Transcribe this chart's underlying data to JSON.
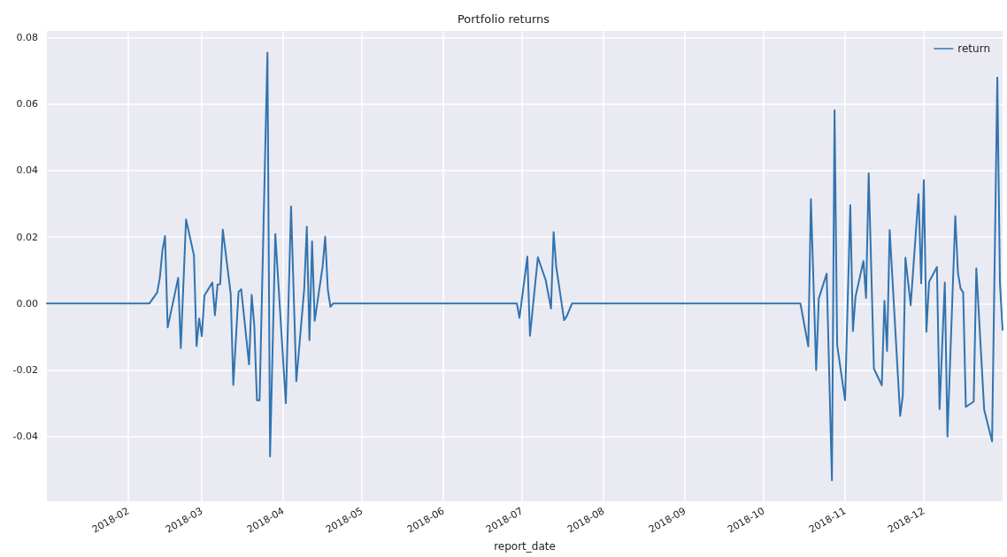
{
  "chart_data": {
    "type": "line",
    "title": "Portfolio returns",
    "xlabel": "report_date",
    "x": [
      "2018-01-01",
      "2018-02-09",
      "2018-02-12",
      "2018-02-13",
      "2018-02-14",
      "2018-02-15",
      "2018-02-16",
      "2018-02-20",
      "2018-02-21",
      "2018-02-23",
      "2018-02-26",
      "2018-02-27",
      "2018-02-28",
      "2018-03-01",
      "2018-03-02",
      "2018-03-05",
      "2018-03-06",
      "2018-03-07",
      "2018-03-08",
      "2018-03-09",
      "2018-03-12",
      "2018-03-13",
      "2018-03-15",
      "2018-03-16",
      "2018-03-19",
      "2018-03-20",
      "2018-03-21",
      "2018-03-22",
      "2018-03-23",
      "2018-03-26",
      "2018-03-27",
      "2018-03-29",
      "2018-04-02",
      "2018-04-04",
      "2018-04-06",
      "2018-04-09",
      "2018-04-10",
      "2018-04-11",
      "2018-04-12",
      "2018-04-13",
      "2018-04-16",
      "2018-04-17",
      "2018-04-18",
      "2018-04-19",
      "2018-04-20",
      "2018-06-29",
      "2018-06-30",
      "2018-07-03",
      "2018-07-04",
      "2018-07-07",
      "2018-07-10",
      "2018-07-12",
      "2018-07-13",
      "2018-07-14",
      "2018-07-17",
      "2018-07-18",
      "2018-07-20",
      "2018-10-15",
      "2018-10-18",
      "2018-10-19",
      "2018-10-21",
      "2018-10-22",
      "2018-10-25",
      "2018-10-27",
      "2018-10-28",
      "2018-10-29",
      "2018-11-01",
      "2018-11-03",
      "2018-11-04",
      "2018-11-05",
      "2018-11-08",
      "2018-11-09",
      "2018-11-10",
      "2018-11-12",
      "2018-11-15",
      "2018-11-16",
      "2018-11-17",
      "2018-11-18",
      "2018-11-22",
      "2018-11-23",
      "2018-11-24",
      "2018-11-26",
      "2018-11-29",
      "2018-11-30",
      "2018-12-01",
      "2018-12-02",
      "2018-12-03",
      "2018-12-06",
      "2018-12-07",
      "2018-12-09",
      "2018-12-10",
      "2018-12-13",
      "2018-12-14",
      "2018-12-15",
      "2018-12-16",
      "2018-12-17",
      "2018-12-20",
      "2018-12-21",
      "2018-12-24",
      "2018-12-27",
      "2018-12-29",
      "2018-12-30",
      "2018-12-31"
    ],
    "series": [
      {
        "name": "return",
        "color": "#3174b0",
        "values": [
          0,
          0,
          0.0033,
          0.0077,
          0.0159,
          0.0203,
          -0.0072,
          0.0077,
          -0.0134,
          0.0253,
          0.0145,
          -0.0128,
          -0.0045,
          -0.0098,
          0.0024,
          0.0063,
          -0.0035,
          0.0057,
          0.0058,
          0.0222,
          0.003,
          -0.0245,
          0.0035,
          0.0043,
          -0.0183,
          0.0026,
          -0.0067,
          -0.0291,
          -0.0291,
          0.0755,
          -0.046,
          0.0209,
          -0.03,
          0.0292,
          -0.0234,
          0.0043,
          0.0231,
          -0.011,
          0.0187,
          -0.0052,
          0.011,
          0.0201,
          0.0042,
          -0.001,
          0,
          0,
          -0.0043,
          0.0141,
          -0.0097,
          0.0139,
          0.007,
          -0.0015,
          0.0215,
          0.011,
          -0.005,
          -0.0038,
          0,
          0,
          -0.0129,
          0.0314,
          -0.02,
          0.0015,
          0.009,
          -0.0532,
          0.0581,
          -0.0125,
          -0.0291,
          0.0296,
          -0.0083,
          0.0021,
          0.0128,
          0.0017,
          0.0392,
          -0.0196,
          -0.0246,
          0.0008,
          -0.0143,
          0.0221,
          -0.0338,
          -0.0276,
          0.0138,
          -0.0005,
          0.0329,
          0.0061,
          0.0371,
          -0.0085,
          0.0065,
          0.011,
          -0.0318,
          0.0063,
          -0.04,
          0.0263,
          0.0092,
          0.0045,
          0.0033,
          -0.0311,
          -0.0295,
          0.0106,
          -0.032,
          -0.0415,
          0.068,
          0.0061,
          -0.0079
        ]
      }
    ],
    "xlim": [
      "2018-01-01",
      "2018-12-31"
    ],
    "xticks": [
      {
        "value": "2018-02-01",
        "label": "2018-02"
      },
      {
        "value": "2018-03-01",
        "label": "2018-03"
      },
      {
        "value": "2018-04-01",
        "label": "2018-04"
      },
      {
        "value": "2018-05-01",
        "label": "2018-05"
      },
      {
        "value": "2018-06-01",
        "label": "2018-06"
      },
      {
        "value": "2018-07-01",
        "label": "2018-07"
      },
      {
        "value": "2018-08-01",
        "label": "2018-08"
      },
      {
        "value": "2018-09-01",
        "label": "2018-09"
      },
      {
        "value": "2018-10-01",
        "label": "2018-10"
      },
      {
        "value": "2018-11-01",
        "label": "2018-11"
      },
      {
        "value": "2018-12-01",
        "label": "2018-12"
      }
    ],
    "ylim": [
      -0.0595,
      0.082
    ],
    "yticks": [
      -0.04,
      {
        "value": -0.02,
        "label": "-0.02"
      },
      {
        "value": 0,
        "label": "0.00"
      },
      0.02,
      0.04,
      0.06,
      0.08
    ],
    "grid": true,
    "legend": "top right",
    "marker": "none",
    "line_style": "solid"
  }
}
